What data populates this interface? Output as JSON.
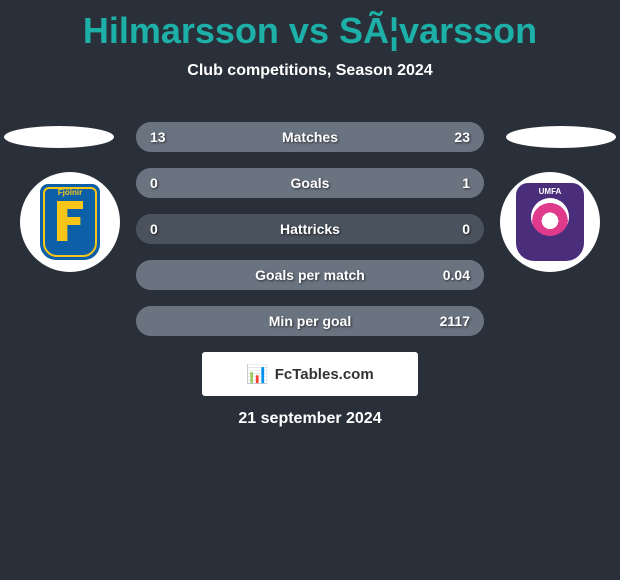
{
  "title": "Hilmarsson vs SÃ¦varsson",
  "subtitle": "Club competitions, Season 2024",
  "date": "21 september 2024",
  "brand": "FcTables.com",
  "colors": {
    "background": "#2a3039",
    "accent": "#1cb0a8",
    "bar_base": "#4a525e",
    "bar_fill": "#6a7380",
    "text": "#ffffff"
  },
  "player_left": {
    "team_short": "Fjölnir",
    "badge_bg": "#0d5fa8",
    "badge_accent": "#f5c518"
  },
  "player_right": {
    "team_short": "UMFA",
    "badge_bg": "#4a2e7c",
    "badge_accent": "#e03a8c"
  },
  "stats": [
    {
      "label": "Matches",
      "left_value": "13",
      "right_value": "23",
      "left_pct": 36,
      "right_pct": 64
    },
    {
      "label": "Goals",
      "left_value": "0",
      "right_value": "1",
      "left_pct": 0,
      "right_pct": 100
    },
    {
      "label": "Hattricks",
      "left_value": "0",
      "right_value": "0",
      "left_pct": 0,
      "right_pct": 0
    },
    {
      "label": "Goals per match",
      "left_value": "",
      "right_value": "0.04",
      "left_pct": 0,
      "right_pct": 100
    },
    {
      "label": "Min per goal",
      "left_value": "",
      "right_value": "2117",
      "left_pct": 0,
      "right_pct": 100
    }
  ]
}
